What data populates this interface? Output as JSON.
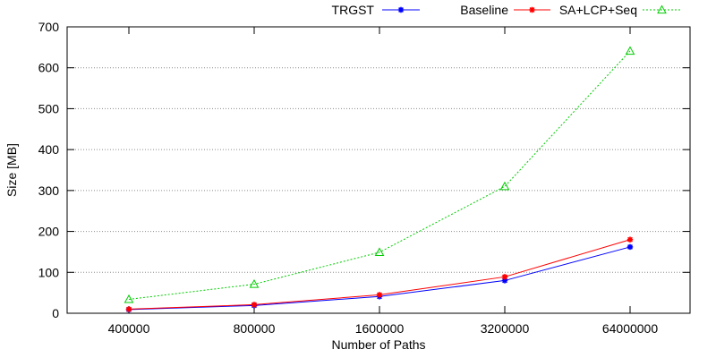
{
  "chart_data": {
    "type": "line",
    "title": "",
    "xlabel": "Number of Paths",
    "ylabel": "Size [MB]",
    "categories": [
      "400000",
      "800000",
      "1600000",
      "3200000",
      "64000000"
    ],
    "ylim": [
      0,
      700
    ],
    "yticks": [
      0,
      100,
      200,
      300,
      400,
      500,
      600,
      700
    ],
    "grid": "horizontal dotted",
    "legend_position": "top-right",
    "series": [
      {
        "name": "TRGST",
        "color": "#0000ff",
        "marker": "star",
        "dash": "solid",
        "values": [
          9,
          19,
          41,
          80,
          162
        ]
      },
      {
        "name": "Baseline",
        "color": "#ff0000",
        "marker": "star",
        "dash": "solid",
        "values": [
          10,
          21,
          45,
          89,
          180
        ]
      },
      {
        "name": "SA+LCP+Seq",
        "color": "#00cc00",
        "marker": "triangle",
        "dash": "dotted",
        "values": [
          34,
          71,
          149,
          310,
          641
        ]
      }
    ]
  }
}
